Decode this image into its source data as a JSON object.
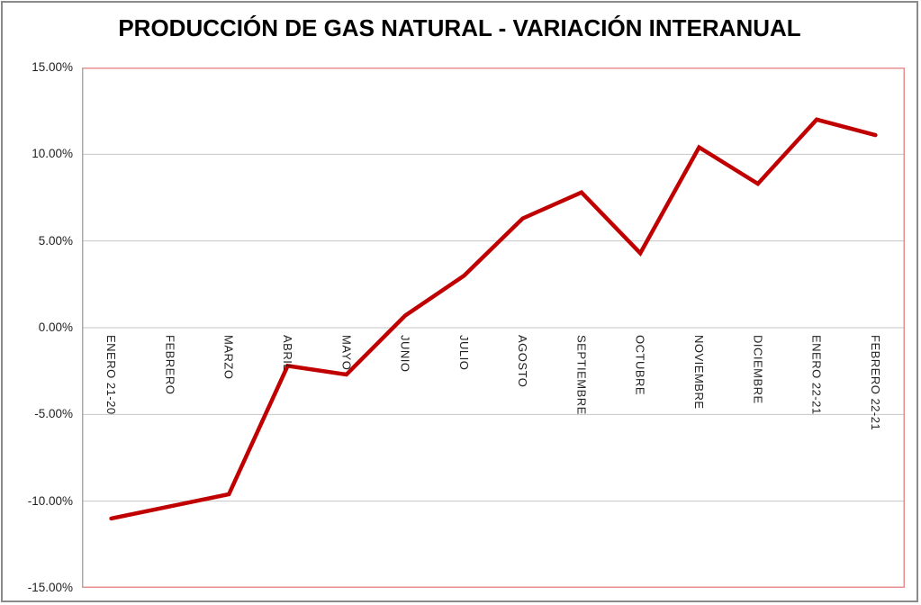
{
  "window": {
    "background": "#ffffff",
    "frame_color": "#8a8a8a"
  },
  "chart_data": {
    "type": "line",
    "title": "PRODUCCIÓN DE GAS NATURAL - VARIACIÓN INTERANUAL",
    "categories": [
      "ENERO 21-20",
      "FEBRERO",
      "MARZO",
      "ABRIL",
      "MAYO",
      "JUNIO",
      "JULIO",
      "AGOSTO",
      "SEPTIEMBRE",
      "OCTUBRE",
      "NOVIEMBRE",
      "DICIEMBRE",
      "ENERO 22-21",
      "FEBRERO 22-21"
    ],
    "series": [
      {
        "name": "Variación interanual",
        "values": [
          -11.0,
          -10.3,
          -9.6,
          -2.2,
          -2.7,
          0.7,
          3.0,
          6.3,
          7.8,
          4.3,
          10.4,
          8.3,
          12.0,
          11.1
        ]
      }
    ],
    "ylabel": "",
    "xlabel": "",
    "ylim": [
      -15,
      15
    ],
    "ytick_step": 5,
    "ytick_labels": [
      "15.00%",
      "10.00%",
      "5.00%",
      "0.00%",
      "-5.00%",
      "-10.00%",
      "-15.00%"
    ],
    "ytick_values": [
      15,
      10,
      5,
      0,
      -5,
      -10,
      -15
    ],
    "grid": true,
    "legend_position": "none",
    "x_labels_position": "below-zero-axis",
    "colors": {
      "line": "#c00000",
      "plot_border": "#e89090",
      "gridline": "#c6c6c6",
      "axis_line": "#aaaaaa",
      "tick_text": "#1f1f1f",
      "title_text": "#000000"
    }
  }
}
